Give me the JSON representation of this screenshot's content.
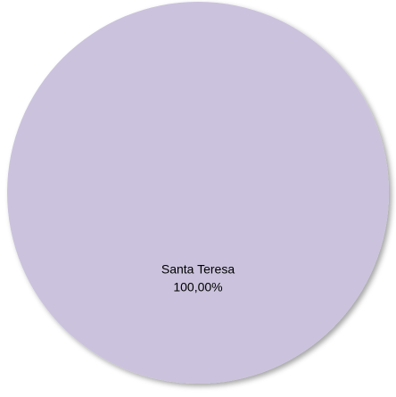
{
  "chart_data": {
    "type": "pie",
    "title": "",
    "slices": [
      {
        "label": "Santa Teresa",
        "value": 100.0,
        "percent_label": "100,00%",
        "color": "#cbc3dd"
      }
    ],
    "legend": "none",
    "shadow": true
  }
}
